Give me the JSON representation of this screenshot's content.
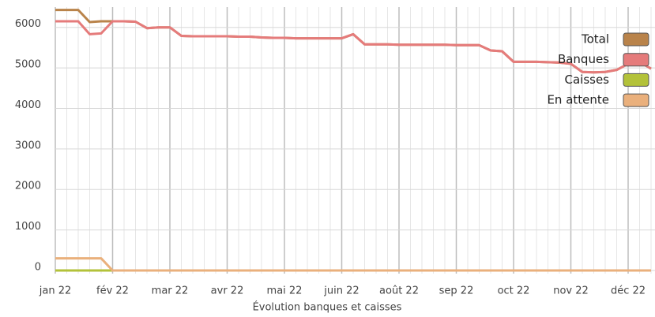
{
  "chart_data": {
    "type": "line",
    "x_label": "Évolution banques et caisses",
    "categories": [
      "jan 22",
      null,
      null,
      null,
      null,
      "fév 22",
      null,
      null,
      null,
      null,
      "mar 22",
      null,
      null,
      null,
      null,
      "avr 22",
      null,
      null,
      null,
      null,
      "mai 22",
      null,
      null,
      null,
      null,
      "juin 22",
      null,
      null,
      null,
      null,
      "août 22",
      null,
      null,
      null,
      null,
      "sep 22",
      null,
      null,
      null,
      null,
      "oct 22",
      null,
      null,
      null,
      null,
      "nov 22",
      null,
      null,
      null,
      null,
      "déc 22",
      null,
      null
    ],
    "series": [
      {
        "name": "Total",
        "color": "#b9834a",
        "values": [
          6430,
          6430,
          6430,
          6130,
          6150,
          6150,
          6150,
          6140,
          5980,
          6000,
          6000,
          5790,
          5780,
          5780,
          5780,
          5780,
          5770,
          5770,
          5750,
          5740,
          5740,
          5730,
          5730,
          5730,
          5730,
          5730,
          5830,
          5580,
          5580,
          5580,
          5570,
          5570,
          5570,
          5570,
          5570,
          5560,
          5560,
          5560,
          5430,
          5410,
          5150,
          5150,
          5150,
          5140,
          5130,
          5100,
          4900,
          4890,
          4900,
          4950,
          5100,
          5150,
          4980
        ]
      },
      {
        "name": "Banques",
        "color": "#e57b7b",
        "values": [
          6150,
          6150,
          6150,
          5830,
          5850,
          6150,
          6150,
          6140,
          5980,
          6000,
          6000,
          5790,
          5780,
          5780,
          5780,
          5780,
          5770,
          5770,
          5750,
          5740,
          5740,
          5730,
          5730,
          5730,
          5730,
          5730,
          5830,
          5580,
          5580,
          5580,
          5570,
          5570,
          5570,
          5570,
          5570,
          5560,
          5560,
          5560,
          5430,
          5410,
          5150,
          5150,
          5150,
          5140,
          5130,
          5100,
          4900,
          4890,
          4900,
          4950,
          5100,
          5150,
          4980
        ]
      },
      {
        "name": "Caisses",
        "color": "#b3c23a",
        "values": [
          0,
          0,
          0,
          0,
          0,
          0,
          0,
          0,
          0,
          0,
          0,
          0,
          0,
          0,
          0,
          0,
          0,
          0,
          0,
          0,
          0,
          0,
          0,
          0,
          0,
          0,
          0,
          0,
          0,
          0,
          0,
          0,
          0,
          0,
          0,
          0,
          0,
          0,
          0,
          0,
          0,
          0,
          0,
          0,
          0,
          0,
          0,
          0,
          0,
          0,
          0,
          0,
          0
        ]
      },
      {
        "name": "En attente",
        "color": "#eab07c",
        "values": [
          300,
          300,
          300,
          300,
          300,
          0,
          0,
          0,
          0,
          0,
          0,
          0,
          0,
          0,
          0,
          0,
          0,
          0,
          0,
          0,
          0,
          0,
          0,
          0,
          0,
          0,
          0,
          0,
          0,
          0,
          0,
          0,
          0,
          0,
          0,
          0,
          0,
          0,
          0,
          0,
          0,
          0,
          0,
          0,
          0,
          0,
          0,
          0,
          0,
          0,
          0,
          0,
          0
        ]
      }
    ],
    "ylim": [
      0,
      6500
    ],
    "yticks": [
      0,
      1000,
      2000,
      3000,
      4000,
      5000,
      6000
    ],
    "grid": true,
    "legend": "top-right"
  }
}
